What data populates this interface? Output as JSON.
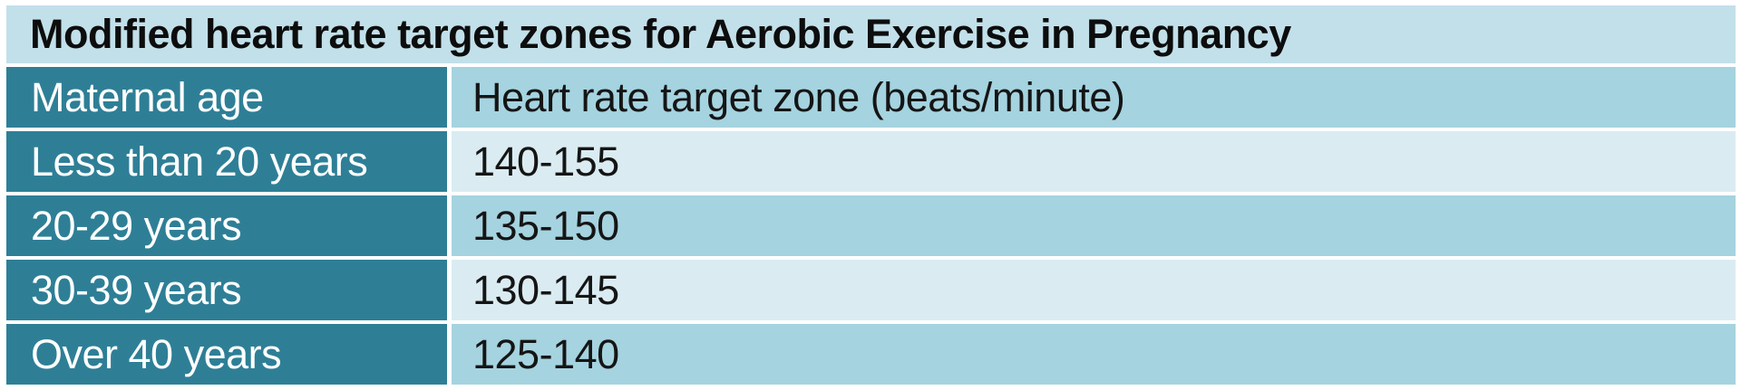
{
  "chart_data": {
    "type": "table",
    "title": "Modified heart rate target zones for Aerobic Exercise in Pregnancy",
    "columns": [
      "Maternal age",
      "Heart rate target zone (beats/minute)"
    ],
    "rows": [
      [
        "Less than 20 years",
        "140-155"
      ],
      [
        "20-29 years",
        "135-150"
      ],
      [
        "30-39 years",
        "130-145"
      ],
      [
        "Over 40 years",
        "125-140"
      ]
    ],
    "layout_hints": {
      "header_column_side": "left",
      "banding": "alternating light/medium on value column",
      "grid": "white separator lines between all rows and between columns"
    }
  },
  "colors": {
    "left_column_bg": "#2e7f96",
    "title_row_bg": "#c2e0ea",
    "value_band_medium": "#a5d3e0",
    "value_band_light": "#daecf2",
    "separator": "#ffffff",
    "title_text": "#0d0d0d",
    "left_column_text": "#ffffff",
    "value_text": "#151515"
  }
}
